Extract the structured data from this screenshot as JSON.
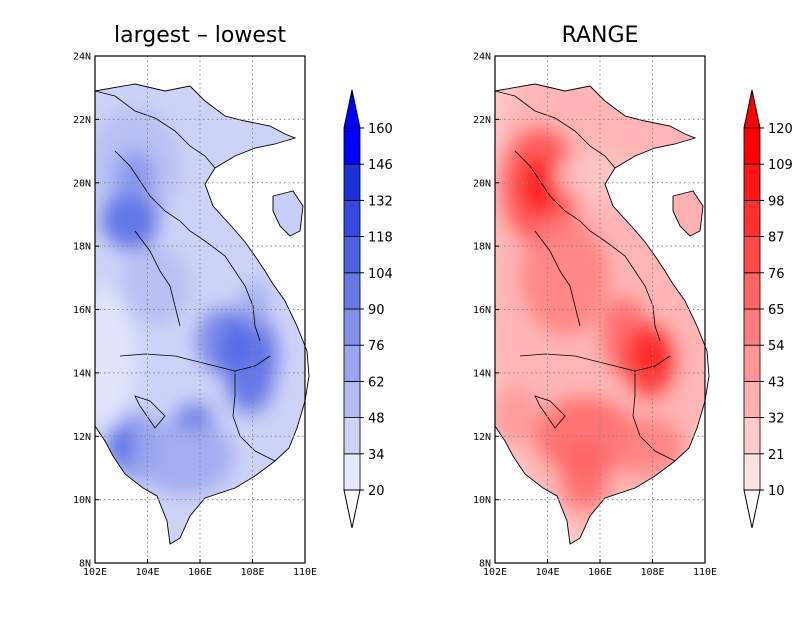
{
  "panels": [
    {
      "id": "left",
      "title": "largest – lowest",
      "palette": [
        "#ffffff",
        "#e6e9fb",
        "#cdd3f7",
        "#b3bcf3",
        "#9aa6ef",
        "#8090eb",
        "#6779e7",
        "#4e63e3",
        "#3449df",
        "#1b32db",
        "#0000ff"
      ],
      "colorbar_labels": [
        "20",
        "34",
        "48",
        "62",
        "76",
        "90",
        "104",
        "118",
        "132",
        "146",
        "160"
      ]
    },
    {
      "id": "right",
      "title": "RANGE",
      "palette": [
        "#ffffff",
        "#ffe3e3",
        "#ffc9c9",
        "#ffb0b0",
        "#ff9696",
        "#ff7c7c",
        "#ff6363",
        "#ff4949",
        "#ff3030",
        "#ff1616",
        "#ff0000"
      ],
      "colorbar_labels": [
        "10",
        "21",
        "32",
        "43",
        "54",
        "65",
        "76",
        "87",
        "98",
        "109",
        "120"
      ]
    }
  ],
  "x_ticks": [
    "102E",
    "104E",
    "106E",
    "108E",
    "110E"
  ],
  "y_ticks": [
    "8N",
    "10N",
    "12N",
    "14N",
    "16N",
    "18N",
    "20N",
    "22N",
    "24N"
  ],
  "lon_range": [
    102,
    110
  ],
  "lat_range": [
    8,
    24
  ]
}
